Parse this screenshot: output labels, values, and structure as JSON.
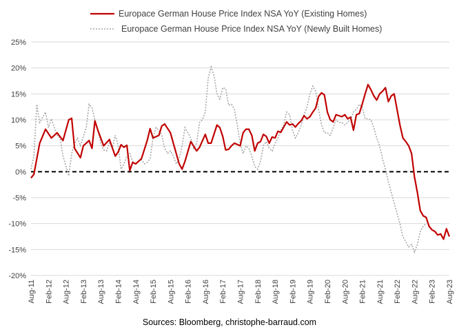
{
  "chart_data": {
    "type": "line",
    "title": "",
    "xlabel": "",
    "ylabel": "",
    "ylim": [
      -20,
      25
    ],
    "y_ticks": [
      25,
      20,
      15,
      10,
      5,
      0,
      -5,
      -10,
      -15,
      -20
    ],
    "y_tick_format": "percent",
    "x_tick_labels": [
      "Aug-11",
      "Feb-12",
      "Aug-12",
      "Feb-13",
      "Aug-13",
      "Feb-14",
      "Aug-14",
      "Feb-15",
      "Aug-15",
      "Feb-16",
      "Aug-16",
      "Feb-17",
      "Aug-17",
      "Feb-18",
      "Aug-18",
      "Feb-19",
      "Aug-19",
      "Feb-20",
      "Aug-20",
      "Feb-21",
      "Aug-21",
      "Feb-22",
      "Aug-22",
      "Feb-23",
      "Aug-23"
    ],
    "x_tick_month_index": [
      0,
      6,
      12,
      18,
      24,
      30,
      36,
      42,
      48,
      54,
      60,
      66,
      72,
      78,
      84,
      90,
      96,
      102,
      108,
      114,
      120,
      126,
      132,
      138,
      144
    ],
    "grid": "horizontal",
    "legend_position": "top",
    "zero_line": "dashed black",
    "series": [
      {
        "name": "Europace German House Price Index NSA YoY (Existing Homes)",
        "color": "#c00000",
        "style": "solid",
        "points": [
          [
            0,
            -1.2
          ],
          [
            1,
            -0.5
          ],
          [
            3,
            5.5
          ],
          [
            5,
            8.2
          ],
          [
            7,
            6.5
          ],
          [
            9,
            7.5
          ],
          [
            11,
            6.0
          ],
          [
            13,
            10.0
          ],
          [
            14,
            10.3
          ],
          [
            15,
            4.5
          ],
          [
            17,
            2.7
          ],
          [
            18,
            5.0
          ],
          [
            20,
            6.0
          ],
          [
            21,
            4.5
          ],
          [
            22,
            9.8
          ],
          [
            23,
            8.0
          ],
          [
            25,
            5.0
          ],
          [
            27,
            6.2
          ],
          [
            29,
            3.0
          ],
          [
            30,
            3.8
          ],
          [
            31,
            5.2
          ],
          [
            32,
            4.7
          ],
          [
            33,
            5.1
          ],
          [
            34,
            0.2
          ],
          [
            35,
            1.8
          ],
          [
            36,
            1.5
          ],
          [
            38,
            2.5
          ],
          [
            40,
            6.0
          ],
          [
            41,
            8.3
          ],
          [
            42,
            6.5
          ],
          [
            44,
            7.0
          ],
          [
            45,
            8.8
          ],
          [
            46,
            9.2
          ],
          [
            48,
            7.5
          ],
          [
            49,
            5.5
          ],
          [
            51,
            1.5
          ],
          [
            52,
            0.5
          ],
          [
            53,
            2.0
          ],
          [
            55,
            5.8
          ],
          [
            57,
            4.0
          ],
          [
            58,
            4.7
          ],
          [
            60,
            7.2
          ],
          [
            61,
            5.5
          ],
          [
            62,
            5.5
          ],
          [
            64,
            9.0
          ],
          [
            65,
            8.5
          ],
          [
            66,
            6.8
          ],
          [
            67,
            4.2
          ],
          [
            68,
            4.3
          ],
          [
            69,
            5.0
          ],
          [
            70,
            5.5
          ],
          [
            72,
            5.0
          ],
          [
            73,
            7.5
          ],
          [
            74,
            8.2
          ],
          [
            75,
            8.2
          ],
          [
            76,
            7.0
          ],
          [
            77,
            4.0
          ],
          [
            78,
            5.5
          ],
          [
            79,
            5.8
          ],
          [
            80,
            7.2
          ],
          [
            81,
            6.8
          ],
          [
            82,
            5.5
          ],
          [
            83,
            6.7
          ],
          [
            84,
            6.5
          ],
          [
            85,
            7.8
          ],
          [
            86,
            7.6
          ],
          [
            87,
            8.6
          ],
          [
            88,
            9.6
          ],
          [
            89,
            9.0
          ],
          [
            90,
            9.2
          ],
          [
            91,
            8.6
          ],
          [
            92,
            9.3
          ],
          [
            93,
            9.8
          ],
          [
            94,
            10.8
          ],
          [
            95,
            10.2
          ],
          [
            96,
            10.6
          ],
          [
            97,
            11.5
          ],
          [
            98,
            12.3
          ],
          [
            99,
            14.5
          ],
          [
            100,
            15.2
          ],
          [
            101,
            14.8
          ],
          [
            102,
            11.5
          ],
          [
            103,
            10.0
          ],
          [
            104,
            9.6
          ],
          [
            105,
            11.0
          ],
          [
            107,
            10.6
          ],
          [
            108,
            11.0
          ],
          [
            109,
            10.2
          ],
          [
            110,
            10.5
          ],
          [
            111,
            8.0
          ],
          [
            112,
            11.0
          ],
          [
            113,
            11.2
          ],
          [
            114,
            13.0
          ],
          [
            115,
            15.0
          ],
          [
            116,
            16.8
          ],
          [
            117,
            15.8
          ],
          [
            118,
            14.6
          ],
          [
            119,
            13.8
          ],
          [
            120,
            15.0
          ],
          [
            121,
            15.5
          ],
          [
            122,
            16.2
          ],
          [
            123,
            13.5
          ],
          [
            124,
            14.6
          ],
          [
            125,
            15.0
          ],
          [
            126,
            12.0
          ],
          [
            127,
            9.0
          ],
          [
            128,
            6.5
          ],
          [
            129,
            5.8
          ],
          [
            130,
            5.0
          ],
          [
            131,
            3.5
          ],
          [
            132,
            -1.0
          ],
          [
            133,
            -4.0
          ],
          [
            134,
            -7.5
          ],
          [
            135,
            -8.5
          ],
          [
            136,
            -8.8
          ],
          [
            137,
            -10.5
          ],
          [
            138,
            -11.2
          ],
          [
            139,
            -11.5
          ],
          [
            140,
            -12.2
          ],
          [
            141,
            -12.0
          ],
          [
            142,
            -13.0
          ],
          [
            143,
            -11.0
          ],
          [
            144,
            -12.5
          ]
        ]
      },
      {
        "name": "Europace German House Price Index NSA YoY (Newly Built Homes)",
        "color": "#a6a6a6",
        "style": "dotted",
        "points": [
          [
            0,
            0.5
          ],
          [
            1,
            3.0
          ],
          [
            2,
            13.0
          ],
          [
            3,
            9.5
          ],
          [
            5,
            11.5
          ],
          [
            6,
            8.5
          ],
          [
            7,
            10.2
          ],
          [
            9,
            7.0
          ],
          [
            10,
            6.5
          ],
          [
            11,
            3.0
          ],
          [
            13,
            -0.8
          ],
          [
            14,
            3.5
          ],
          [
            15,
            5.5
          ],
          [
            16,
            6.5
          ],
          [
            17,
            5.0
          ],
          [
            18,
            6.8
          ],
          [
            19,
            8.5
          ],
          [
            20,
            13.0
          ],
          [
            21,
            12.3
          ],
          [
            22,
            10.0
          ],
          [
            23,
            8.0
          ],
          [
            24,
            5.5
          ],
          [
            25,
            4.2
          ],
          [
            26,
            4.0
          ],
          [
            27,
            5.5
          ],
          [
            28,
            4.5
          ],
          [
            29,
            7.0
          ],
          [
            30,
            5.0
          ],
          [
            31,
            0.5
          ],
          [
            32,
            1.5
          ],
          [
            33,
            3.0
          ],
          [
            34,
            3.5
          ],
          [
            35,
            2.0
          ],
          [
            36,
            1.5
          ],
          [
            37,
            2.0
          ],
          [
            38,
            2.3
          ],
          [
            39,
            1.5
          ],
          [
            40,
            1.8
          ],
          [
            41,
            2.5
          ],
          [
            42,
            6.5
          ],
          [
            43,
            8.5
          ],
          [
            44,
            8.0
          ],
          [
            45,
            7.0
          ],
          [
            46,
            4.5
          ],
          [
            47,
            3.5
          ],
          [
            48,
            4.0
          ],
          [
            49,
            3.0
          ],
          [
            50,
            1.5
          ],
          [
            51,
            2.5
          ],
          [
            52,
            5.0
          ],
          [
            53,
            8.5
          ],
          [
            54,
            7.5
          ],
          [
            55,
            6.5
          ],
          [
            56,
            4.5
          ],
          [
            57,
            5.5
          ],
          [
            58,
            9.5
          ],
          [
            59,
            10.0
          ],
          [
            60,
            11.5
          ],
          [
            61,
            18.0
          ],
          [
            62,
            20.2
          ],
          [
            63,
            18.5
          ],
          [
            64,
            15.0
          ],
          [
            65,
            14.0
          ],
          [
            66,
            16.2
          ],
          [
            67,
            16.0
          ],
          [
            68,
            12.8
          ],
          [
            69,
            13.0
          ],
          [
            70,
            12.0
          ],
          [
            71,
            9.0
          ],
          [
            72,
            5.5
          ],
          [
            73,
            3.5
          ],
          [
            74,
            5.0
          ],
          [
            75,
            4.5
          ],
          [
            76,
            3.0
          ],
          [
            77,
            1.0
          ],
          [
            78,
            0.5
          ],
          [
            79,
            2.0
          ],
          [
            80,
            5.0
          ],
          [
            81,
            5.8
          ],
          [
            82,
            4.5
          ],
          [
            83,
            4.0
          ],
          [
            84,
            5.5
          ],
          [
            85,
            6.5
          ],
          [
            86,
            8.0
          ],
          [
            87,
            9.0
          ],
          [
            88,
            11.5
          ],
          [
            89,
            11.0
          ],
          [
            90,
            8.0
          ],
          [
            91,
            6.5
          ],
          [
            92,
            7.5
          ],
          [
            93,
            9.0
          ],
          [
            94,
            11.0
          ],
          [
            95,
            12.5
          ],
          [
            96,
            15.0
          ],
          [
            97,
            16.5
          ],
          [
            98,
            15.5
          ],
          [
            99,
            12.0
          ],
          [
            100,
            9.0
          ],
          [
            101,
            7.5
          ],
          [
            102,
            7.5
          ],
          [
            103,
            7.0
          ],
          [
            104,
            8.5
          ],
          [
            105,
            10.0
          ],
          [
            106,
            9.5
          ],
          [
            107,
            9.5
          ],
          [
            108,
            9.0
          ],
          [
            109,
            9.5
          ],
          [
            110,
            10.0
          ],
          [
            111,
            11.5
          ],
          [
            112,
            12.0
          ],
          [
            113,
            13.0
          ],
          [
            114,
            12.5
          ],
          [
            115,
            10.2
          ],
          [
            116,
            10.2
          ],
          [
            117,
            10.0
          ],
          [
            118,
            8.5
          ],
          [
            119,
            6.5
          ],
          [
            120,
            5.0
          ],
          [
            121,
            2.5
          ],
          [
            122,
            0.5
          ],
          [
            123,
            -2.0
          ],
          [
            124,
            -4.0
          ],
          [
            125,
            -6.0
          ],
          [
            126,
            -8.0
          ],
          [
            127,
            -10.0
          ],
          [
            128,
            -12.5
          ],
          [
            129,
            -13.5
          ],
          [
            130,
            -14.5
          ],
          [
            131,
            -14.0
          ],
          [
            132,
            -15.5
          ],
          [
            133,
            -14.0
          ],
          [
            134,
            -11.5
          ],
          [
            135,
            -10.5
          ],
          [
            136,
            -10.0
          ]
        ]
      }
    ],
    "source": "Sources: Bloomberg, christophe-barraud.com"
  }
}
